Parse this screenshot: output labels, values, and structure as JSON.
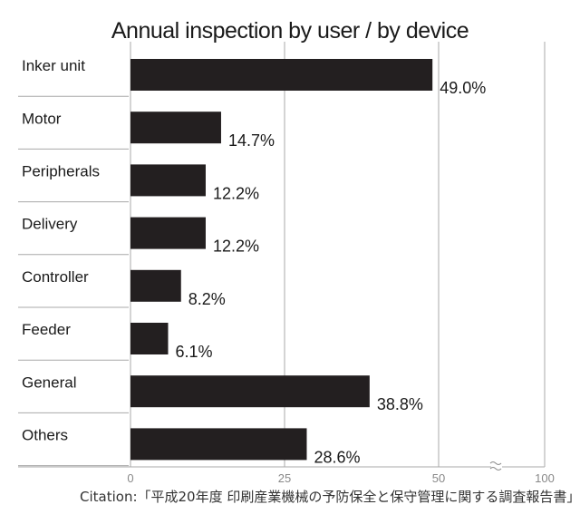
{
  "title": "Annual inspection by user / by device",
  "citation": "Citation:「平成20年度 印刷産業機械の予防保全と保守管理に関する調査報告書」",
  "chart_data": {
    "type": "bar",
    "orientation": "horizontal",
    "title": "Annual inspection by user / by device",
    "categories": [
      "Inker unit",
      "Motor",
      "Peripherals",
      "Delivery",
      "Controller",
      "Feeder",
      "General",
      "Others"
    ],
    "values": [
      49.0,
      14.7,
      12.2,
      12.2,
      8.2,
      6.1,
      38.8,
      28.6
    ],
    "value_labels": [
      "49.0%",
      "14.7%",
      "12.2%",
      "12.2%",
      "8.2%",
      "6.1%",
      "38.8%",
      "28.6%"
    ],
    "x_ticks": [
      0,
      25,
      50,
      100
    ],
    "x_tick_labels": [
      "0",
      "25",
      "50",
      "100"
    ],
    "xlim": [
      0,
      100
    ],
    "axis_break": "between 50 and 100",
    "grid": true,
    "bar_color": "#231f20",
    "grid_color": "#a8a8a8"
  }
}
